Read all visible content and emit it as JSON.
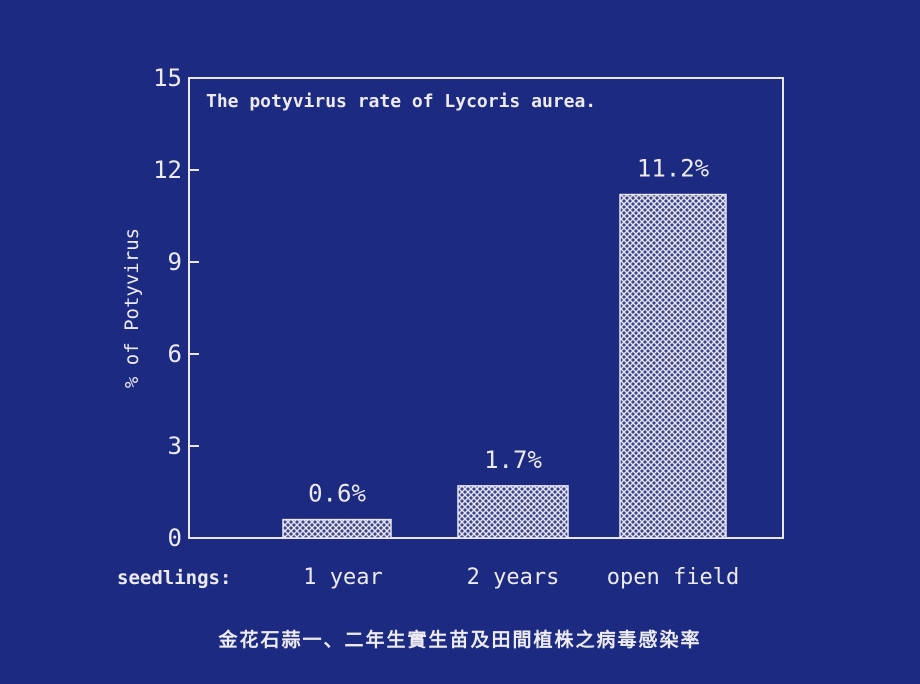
{
  "colors": {
    "background": "#1c2a82",
    "foreground": "#e9e6ef",
    "bar_hatch_bg": "#3a4692",
    "bar_hatch_fg": "#e9e6ef"
  },
  "chart_data": {
    "type": "bar",
    "title": "The potyvirus rate of Lycoris aurea.",
    "ylabel": "% of Potyvirus",
    "x_prefix": "seedlings:",
    "categories": [
      "1 year",
      "2 years",
      "open field"
    ],
    "values": [
      0.6,
      1.7,
      11.2
    ],
    "value_labels": [
      "0.6%",
      "1.7%",
      "11.2%"
    ],
    "ylim": [
      0,
      15
    ],
    "yticks": [
      0,
      3,
      6,
      9,
      12,
      15
    ],
    "grid": false,
    "bar_fill": "crosshatch"
  },
  "caption": "金花石蒜一、二年生實生苗及田間植株之病毒感染率"
}
